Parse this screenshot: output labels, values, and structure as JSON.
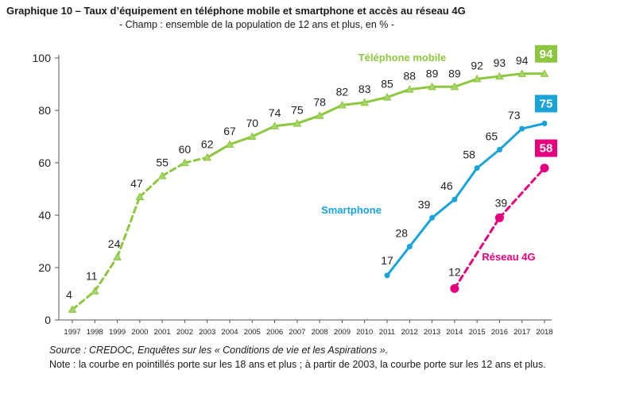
{
  "title": "Graphique 10 – Taux d’équipement en téléphone mobile et smartphone et accès au réseau 4G",
  "subtitle": "- Champ : ensemble de la population de 12 ans et plus, en % -",
  "source": "Source : CREDOC, Enquêtes sur les « Conditions de vie et les Aspirations ».",
  "note": "Note : la courbe en pointillés porte sur les 18 ans et plus ; à partir de 2003, la courbe porte sur les 12 ans et plus.",
  "chart_data": {
    "type": "line",
    "x": [
      "1997",
      "1998",
      "1999",
      "2000",
      "2001",
      "2002",
      "2003",
      "2004",
      "2005",
      "2006",
      "2007",
      "2008",
      "2009",
      "2010",
      "2011",
      "2012",
      "2013",
      "2014",
      "2015",
      "2016",
      "2017",
      "2018"
    ],
    "ylim": [
      0,
      100
    ],
    "yticks": [
      0,
      20,
      40,
      60,
      80,
      100
    ],
    "grid": false,
    "series": [
      {
        "name": "Téléphone mobile",
        "color": "#8dc63f",
        "marker": "triangle",
        "dashed_until": "2003",
        "values": [
          4,
          11,
          24,
          47,
          55,
          60,
          62,
          67,
          70,
          74,
          75,
          78,
          82,
          83,
          85,
          88,
          89,
          89,
          92,
          93,
          94,
          94
        ],
        "final_label": "94"
      },
      {
        "name": "Smartphone",
        "color": "#1aa3d9",
        "marker": "circle",
        "dashed_until": null,
        "values": [
          null,
          null,
          null,
          null,
          null,
          null,
          null,
          null,
          null,
          null,
          null,
          null,
          null,
          null,
          17,
          28,
          39,
          46,
          58,
          65,
          73,
          75
        ],
        "final_label": "75"
      },
      {
        "name": "Réseau 4G",
        "color": "#e6007e",
        "marker": "circle-sparse",
        "dashed_until": "all",
        "values": [
          null,
          null,
          null,
          null,
          null,
          null,
          null,
          null,
          null,
          null,
          null,
          null,
          null,
          null,
          null,
          null,
          null,
          12,
          null,
          39,
          null,
          58
        ],
        "final_label": "58"
      }
    ]
  }
}
